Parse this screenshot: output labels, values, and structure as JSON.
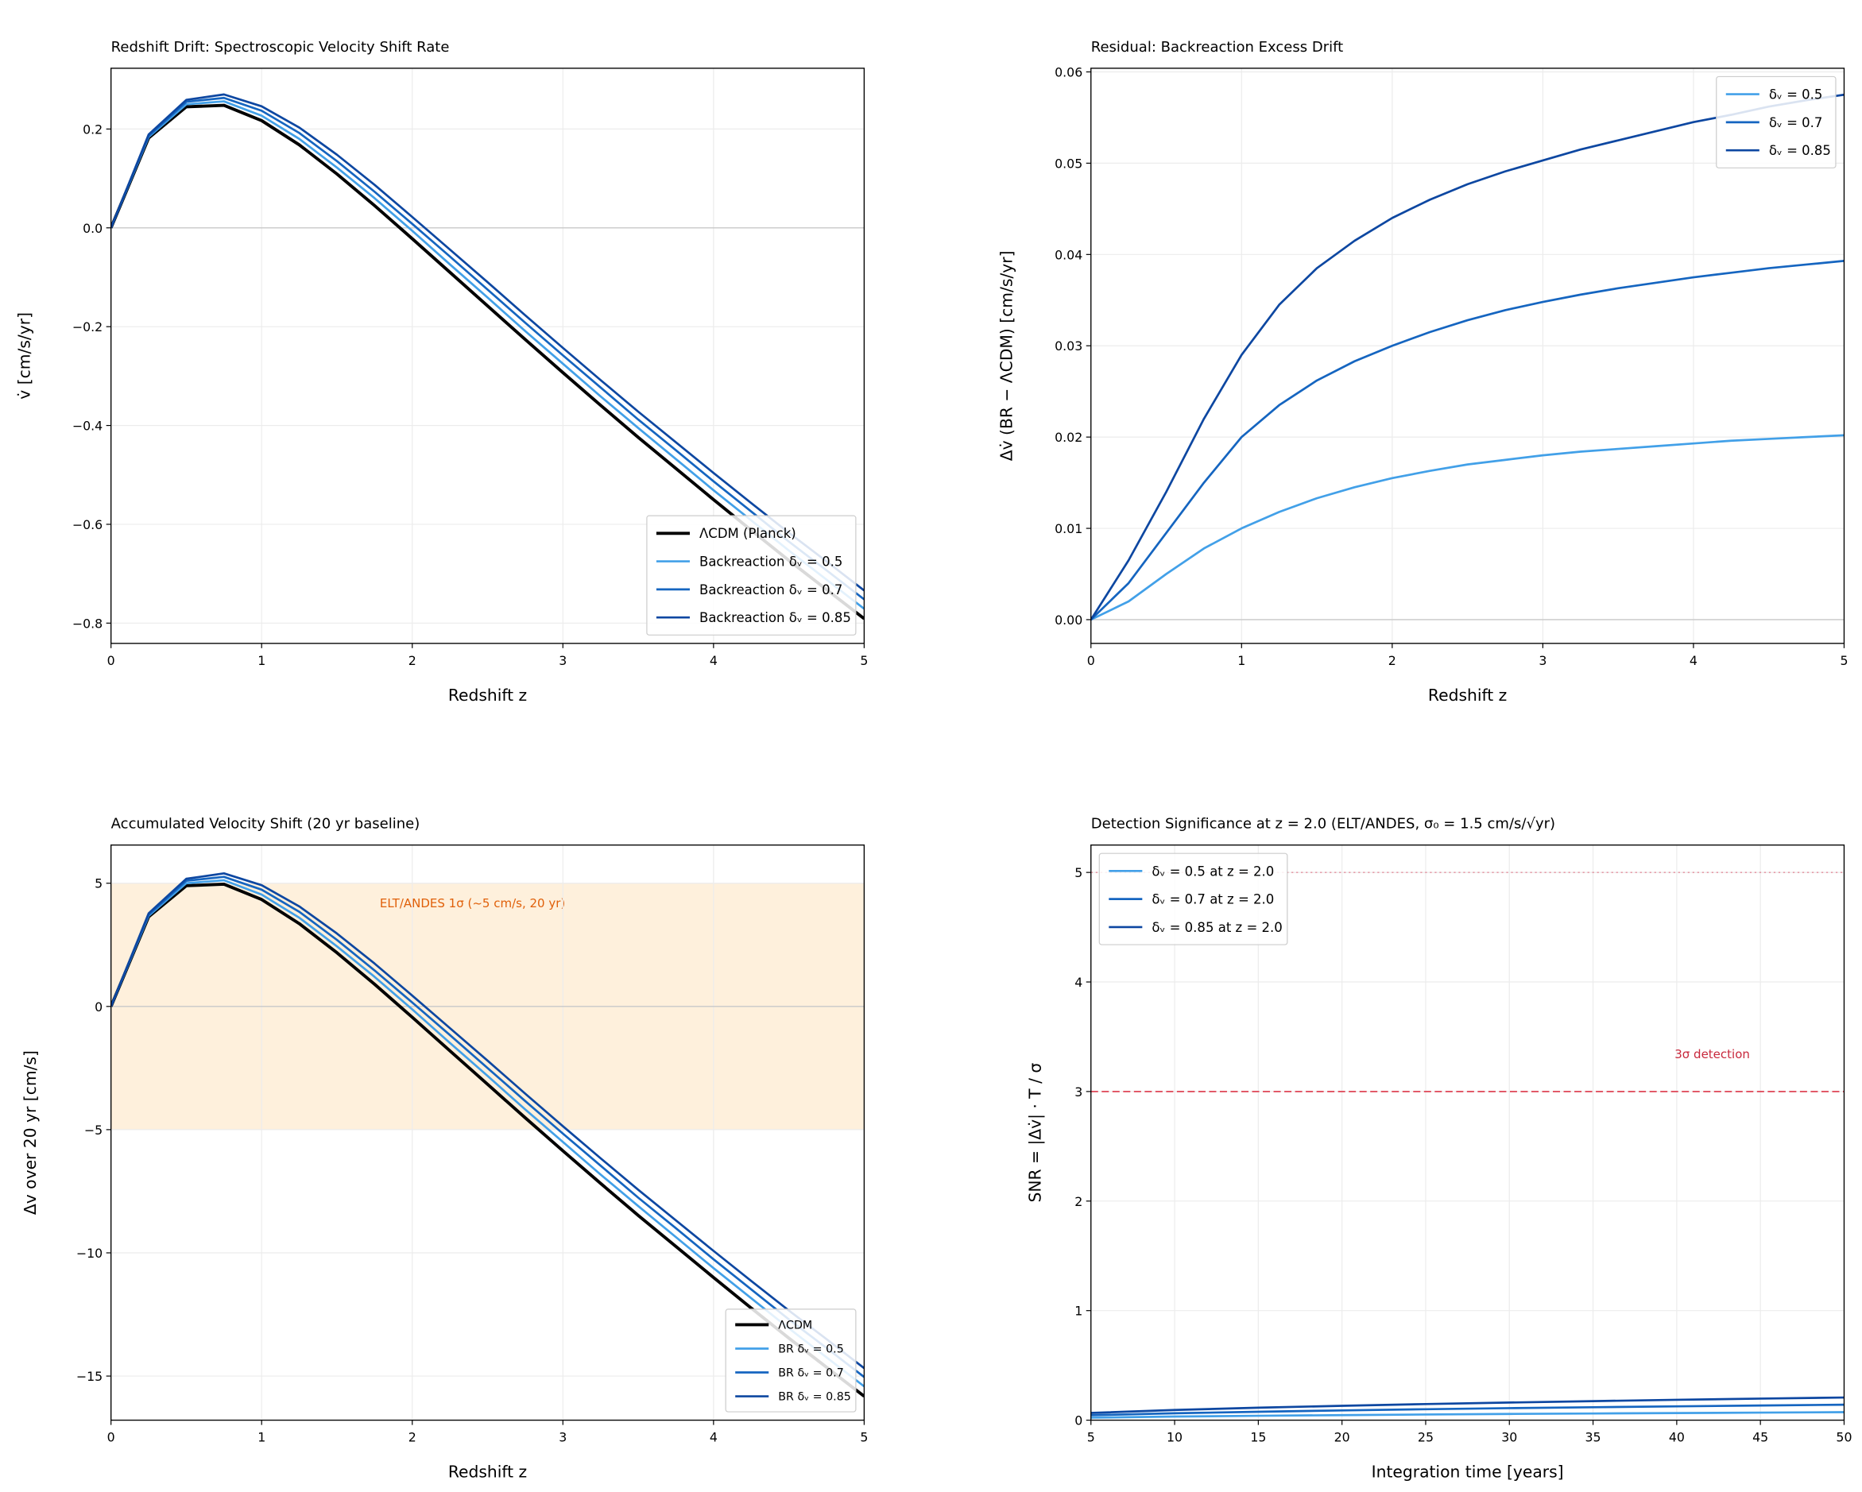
{
  "chart_data": [
    {
      "type": "line",
      "title": "Redshift Drift: Spectroscopic Velocity Shift Rate",
      "xlabel": "Redshift z",
      "ylabel": "v̇ [cm/s/yr]",
      "x": [
        0,
        0.25,
        0.5,
        0.75,
        1,
        1.25,
        1.5,
        1.75,
        2,
        2.25,
        2.5,
        2.75,
        3,
        3.25,
        3.5,
        3.75,
        4,
        4.25,
        4.5,
        4.75,
        5
      ],
      "series": [
        {
          "name": "ΛCDM (Planck)",
          "color": "#000000",
          "values": [
            0,
            0.182,
            0.245,
            0.248,
            0.217,
            0.168,
            0.109,
            0.045,
            -0.022,
            -0.09,
            -0.158,
            -0.226,
            -0.293,
            -0.359,
            -0.424,
            -0.487,
            -0.55,
            -0.612,
            -0.673,
            -0.732,
            -0.791
          ]
        },
        {
          "name": "Backreaction δᵥ = 0.5",
          "color": "#42a0e8",
          "values": [
            0,
            0.184,
            0.25,
            0.256,
            0.227,
            0.18,
            0.122,
            0.06,
            -0.006,
            -0.074,
            -0.141,
            -0.209,
            -0.275,
            -0.341,
            -0.405,
            -0.468,
            -0.531,
            -0.592,
            -0.653,
            -0.712,
            -0.771
          ]
        },
        {
          "name": "Backreaction δᵥ = 0.7",
          "color": "#1565c0",
          "values": [
            0,
            0.186,
            0.255,
            0.263,
            0.237,
            0.192,
            0.135,
            0.073,
            0.008,
            -0.058,
            -0.125,
            -0.192,
            -0.258,
            -0.323,
            -0.388,
            -0.45,
            -0.513,
            -0.574,
            -0.635,
            -0.693,
            -0.752
          ]
        },
        {
          "name": "Backreaction δᵥ = 0.85",
          "color": "#0d47a1",
          "values": [
            0,
            0.189,
            0.259,
            0.27,
            0.246,
            0.203,
            0.148,
            0.087,
            0.022,
            -0.044,
            -0.11,
            -0.177,
            -0.243,
            -0.308,
            -0.372,
            -0.434,
            -0.496,
            -0.557,
            -0.617,
            -0.675,
            -0.734
          ]
        }
      ],
      "xlim": [
        0,
        5
      ],
      "ylim": [
        -0.841,
        0.323
      ],
      "xticks": [
        0,
        1,
        2,
        3,
        4,
        5
      ],
      "yticks": [
        {
          "value": -0.8,
          "label": "−0.8"
        },
        {
          "value": -0.6,
          "label": "−0.6"
        },
        {
          "value": -0.4,
          "label": "−0.4"
        },
        {
          "value": -0.2,
          "label": "−0.2"
        },
        {
          "value": 0,
          "label": "0.0"
        },
        {
          "value": 0.2,
          "label": "0.2"
        }
      ],
      "grid": true,
      "zero_line": true,
      "legend": "lower right"
    },
    {
      "type": "line",
      "title": "Residual: Backreaction Excess Drift",
      "xlabel": "Redshift z",
      "ylabel": "Δv̇ (BR − ΛCDM) [cm/s/yr]",
      "x": [
        0,
        0.25,
        0.5,
        0.75,
        1,
        1.25,
        1.5,
        1.75,
        2,
        2.25,
        2.5,
        2.75,
        3,
        3.25,
        3.5,
        3.75,
        4,
        4.25,
        4.5,
        4.75,
        5
      ],
      "series": [
        {
          "name": "δᵥ = 0.5",
          "color": "#42a0e8",
          "values": [
            0,
            0.002,
            0.005,
            0.0078,
            0.01,
            0.0118,
            0.0133,
            0.0145,
            0.0155,
            0.0163,
            0.017,
            0.0175,
            0.018,
            0.0184,
            0.0187,
            0.019,
            0.0193,
            0.0196,
            0.0198,
            0.02,
            0.0202
          ]
        },
        {
          "name": "δᵥ = 0.7",
          "color": "#1565c0",
          "values": [
            0,
            0.004,
            0.0095,
            0.015,
            0.02,
            0.0235,
            0.0262,
            0.0283,
            0.03,
            0.0315,
            0.0328,
            0.0339,
            0.0348,
            0.0356,
            0.0363,
            0.0369,
            0.0375,
            0.038,
            0.0385,
            0.0389,
            0.0393
          ]
        },
        {
          "name": "δᵥ = 0.85",
          "color": "#0d47a1",
          "values": [
            0,
            0.0065,
            0.014,
            0.022,
            0.029,
            0.0345,
            0.0385,
            0.0415,
            0.044,
            0.046,
            0.0477,
            0.0491,
            0.0503,
            0.0515,
            0.0525,
            0.0535,
            0.0545,
            0.0553,
            0.0562,
            0.0569,
            0.0575
          ]
        }
      ],
      "xlim": [
        0,
        5
      ],
      "ylim": [
        -0.0026,
        0.0604
      ],
      "xticks": [
        0,
        1,
        2,
        3,
        4,
        5
      ],
      "yticks": [
        {
          "value": 0,
          "label": "0.00"
        },
        {
          "value": 0.01,
          "label": "0.01"
        },
        {
          "value": 0.02,
          "label": "0.02"
        },
        {
          "value": 0.03,
          "label": "0.03"
        },
        {
          "value": 0.04,
          "label": "0.04"
        },
        {
          "value": 0.05,
          "label": "0.05"
        },
        {
          "value": 0.06,
          "label": "0.06"
        }
      ],
      "grid": true,
      "zero_line": true,
      "legend": "upper right"
    },
    {
      "type": "line",
      "title": "Accumulated Velocity Shift (20 yr baseline)",
      "xlabel": "Redshift z",
      "ylabel": "Δv over 20 yr [cm/s]",
      "x": [
        0,
        0.25,
        0.5,
        0.75,
        1,
        1.25,
        1.5,
        1.75,
        2,
        2.25,
        2.5,
        2.75,
        3,
        3.25,
        3.5,
        3.75,
        4,
        4.25,
        4.5,
        4.75,
        5
      ],
      "series": [
        {
          "name": "ΛCDM",
          "color": "#000000",
          "values": [
            0,
            3.64,
            4.9,
            4.96,
            4.34,
            3.36,
            2.18,
            0.9,
            -0.44,
            -1.8,
            -3.16,
            -4.52,
            -5.86,
            -7.18,
            -8.48,
            -9.74,
            -11.0,
            -12.24,
            -13.46,
            -14.64,
            -15.82
          ]
        },
        {
          "name": "BR δᵥ = 0.5",
          "color": "#42a0e8",
          "values": [
            0,
            3.68,
            5.0,
            5.12,
            4.54,
            3.6,
            2.44,
            1.2,
            -0.12,
            -1.48,
            -2.82,
            -4.18,
            -5.5,
            -6.82,
            -8.1,
            -9.36,
            -10.62,
            -11.84,
            -13.06,
            -14.24,
            -15.42
          ]
        },
        {
          "name": "BR δᵥ = 0.7",
          "color": "#1565c0",
          "values": [
            0,
            3.72,
            5.1,
            5.26,
            4.74,
            3.84,
            2.7,
            1.46,
            0.16,
            -1.16,
            -2.5,
            -3.84,
            -5.16,
            -6.46,
            -7.76,
            -9.0,
            -10.26,
            -11.48,
            -12.7,
            -13.86,
            -15.04
          ]
        },
        {
          "name": "BR δᵥ = 0.85",
          "color": "#0d47a1",
          "values": [
            0,
            3.78,
            5.18,
            5.4,
            4.92,
            4.06,
            2.96,
            1.74,
            0.44,
            -0.88,
            -2.2,
            -3.54,
            -4.86,
            -6.16,
            -7.44,
            -8.68,
            -9.92,
            -11.14,
            -12.34,
            -13.5,
            -14.68
          ]
        }
      ],
      "xlim": [
        0,
        5
      ],
      "ylim": [
        -16.79,
        6.55
      ],
      "xticks": [
        0,
        1,
        2,
        3,
        4,
        5
      ],
      "yticks": [
        {
          "value": -15,
          "label": "−15"
        },
        {
          "value": -10,
          "label": "−10"
        },
        {
          "value": -5,
          "label": "−5"
        },
        0,
        5
      ],
      "band": {
        "range": [
          -5,
          5
        ],
        "label": "ELT/ANDES 1σ (~5 cm/s, 20 yr)",
        "color": "#fdebd0"
      },
      "grid": true,
      "zero_line": true,
      "legend": "lower right"
    },
    {
      "type": "line",
      "title": "Detection Significance at z = 2.0 (ELT/ANDES, σ₀ = 1.5 cm/s/√yr)",
      "xlabel": "Integration time [years]",
      "ylabel": "SNR = |Δv̇| · T / σ",
      "x": [
        5,
        10,
        15,
        20,
        25,
        30,
        35,
        40,
        45,
        50
      ],
      "series": [
        {
          "name": "δᵥ = 0.5 at z = 2.0",
          "color": "#42a0e8",
          "values": [
            0.023,
            0.033,
            0.04,
            0.046,
            0.052,
            0.057,
            0.061,
            0.065,
            0.069,
            0.073
          ]
        },
        {
          "name": "δᵥ = 0.7 at z = 2.0",
          "color": "#1565c0",
          "values": [
            0.045,
            0.063,
            0.077,
            0.089,
            0.1,
            0.11,
            0.118,
            0.126,
            0.134,
            0.141
          ]
        },
        {
          "name": "δᵥ = 0.85 at z = 2.0",
          "color": "#0d47a1",
          "values": [
            0.066,
            0.093,
            0.114,
            0.131,
            0.147,
            0.161,
            0.174,
            0.186,
            0.197,
            0.207
          ]
        }
      ],
      "xlim": [
        5,
        50
      ],
      "ylim": [
        0,
        5.25
      ],
      "xticks": [
        5,
        10,
        15,
        20,
        25,
        30,
        35,
        40,
        45,
        50
      ],
      "yticks": [
        0,
        1,
        2,
        3,
        4,
        5
      ],
      "reference_lines": [
        {
          "value": 3,
          "style": "dashed",
          "color": "#e05060",
          "label": "3σ detection"
        },
        {
          "value": 5,
          "style": "dotted",
          "color": "#e08090"
        }
      ],
      "grid": true,
      "zero_line": false,
      "legend": "upper left"
    }
  ]
}
